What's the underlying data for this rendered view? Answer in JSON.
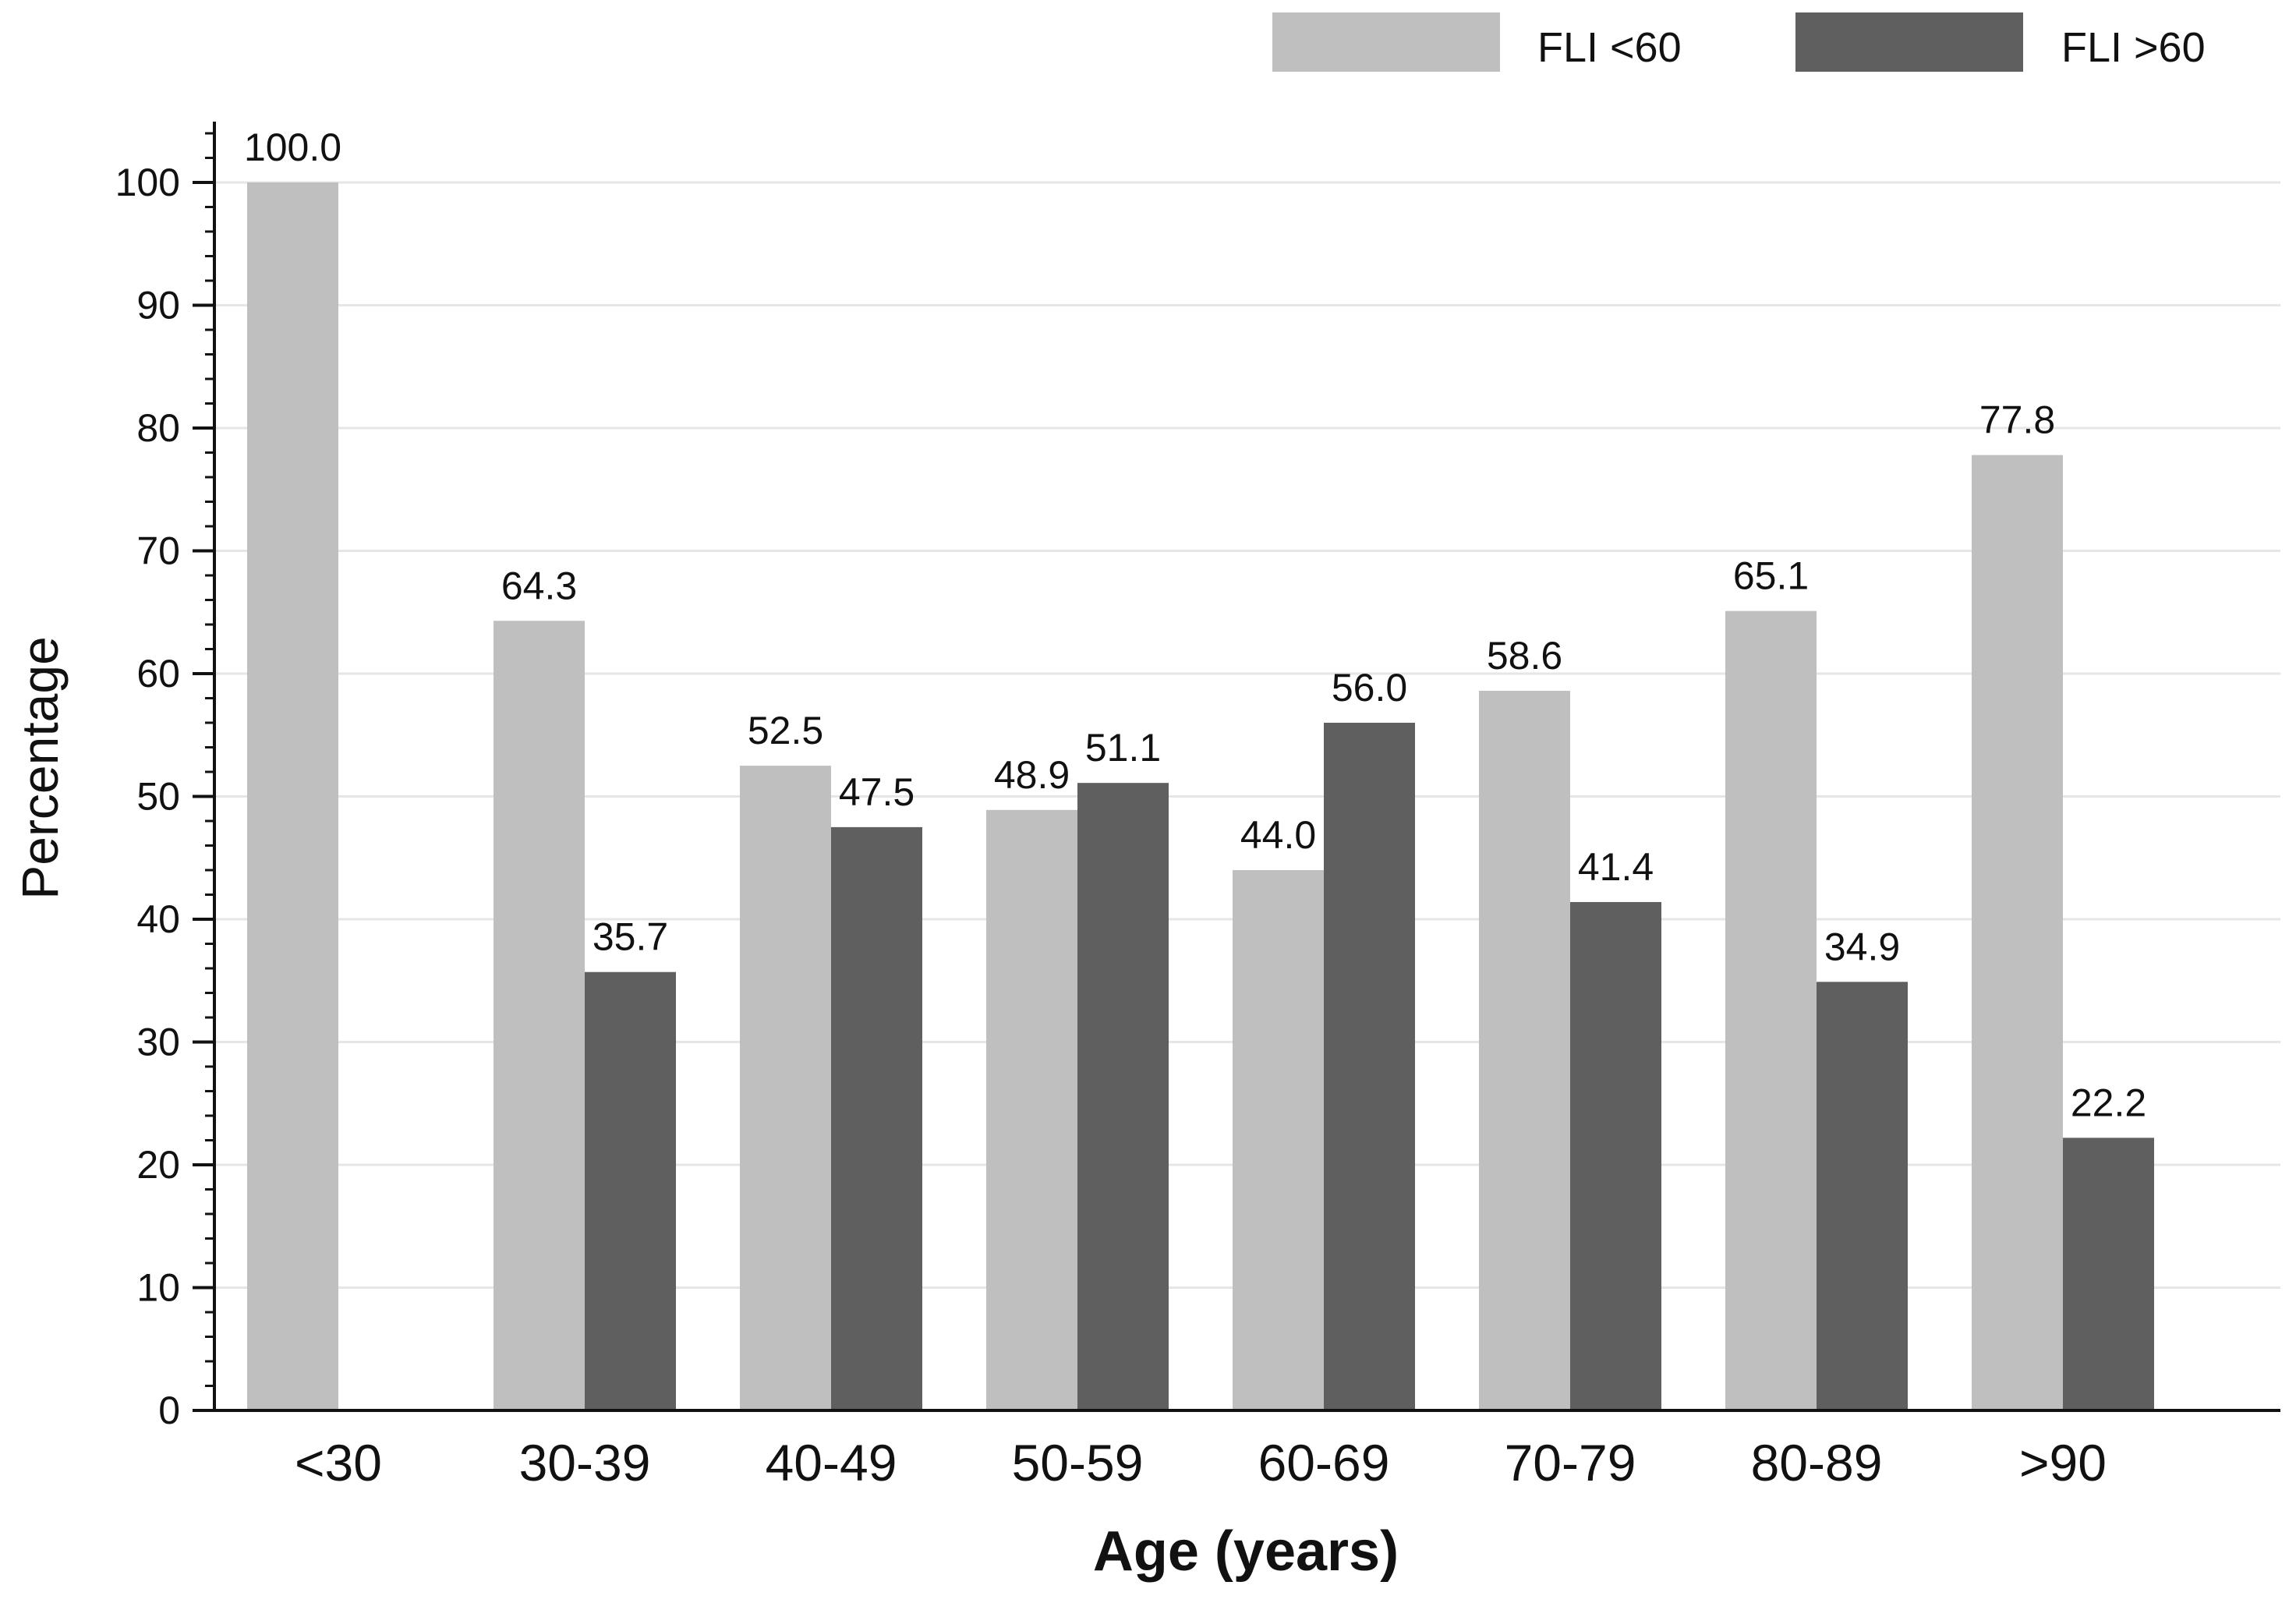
{
  "chart_data": {
    "type": "bar",
    "title": "",
    "xlabel": "Age (years)",
    "ylabel": "Percentage",
    "ylim": [
      0,
      100
    ],
    "yticks": [
      0,
      10,
      20,
      30,
      40,
      50,
      60,
      70,
      80,
      90,
      100
    ],
    "grid": true,
    "legend_position": "top-right",
    "categories": [
      "<30",
      "30-39",
      "40-49",
      "50-59",
      "60-69",
      "70-79",
      "80-89",
      ">90"
    ],
    "series": [
      {
        "name": "FLI <60",
        "color": "#bfbfbf",
        "values": [
          100.0,
          64.3,
          52.5,
          48.9,
          44.0,
          58.6,
          65.1,
          77.8
        ],
        "labels": [
          "100.0",
          "64.3",
          "52.5",
          "48.9",
          "44.0",
          "58.6",
          "65.1",
          "77.8"
        ]
      },
      {
        "name": "FLI >60",
        "color": "#5f5f5f",
        "values": [
          null,
          35.7,
          47.5,
          51.1,
          56.0,
          41.4,
          34.9,
          22.2
        ],
        "labels": [
          "",
          "35.7",
          "47.5",
          "51.1",
          "56.0",
          "41.4",
          "34.9",
          "22.2"
        ]
      }
    ]
  }
}
